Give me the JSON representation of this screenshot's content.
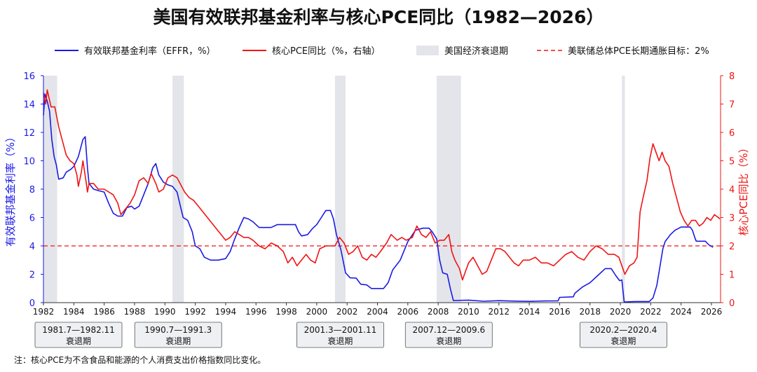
{
  "chart_data": {
    "type": "line",
    "title": "美国有效联邦基金利率与核心PCE同比（1982—2026）",
    "ylabel": "有效联邦基金利率（%）",
    "ylabel_right": "核心PCE同比（%）",
    "ylim": [
      0,
      16
    ],
    "ylim_right": [
      0,
      8
    ],
    "xlim": [
      1982,
      2026.6
    ],
    "x_ticks": [
      "1982",
      "1984",
      "1986",
      "1988",
      "1990",
      "1992",
      "1994",
      "1996",
      "1998",
      "2000",
      "2002",
      "2004",
      "2006",
      "2008",
      "2010",
      "2012",
      "2014",
      "2016",
      "2018",
      "2020",
      "2022",
      "2024",
      "2026"
    ],
    "y_ticks": [
      "0",
      "2",
      "4",
      "6",
      "8",
      "10",
      "12",
      "14",
      "16"
    ],
    "y_ticks_right": [
      "0",
      "1",
      "2",
      "3",
      "4",
      "5",
      "6",
      "7",
      "8"
    ],
    "legend": [
      {
        "label": "有效联邦基金利率（EFFR，%）",
        "color": "#1a1ae6"
      },
      {
        "label": "核心PCE同比（%，右轴）",
        "color": "#f01414"
      },
      {
        "label": "美国经济衰退期",
        "color": "#e3e5ea"
      },
      {
        "label": "美联储总体PCE长期通胀目标：2%",
        "color": "#f01414"
      }
    ],
    "target_value": 2,
    "recessions": [
      {
        "start": 1981.5,
        "end": 1982.9,
        "label1": "1981.7—1982.11",
        "label2": "衰退期"
      },
      {
        "start": 1990.5,
        "end": 1991.25,
        "label1": "1990.7—1991.3",
        "label2": "衰退期"
      },
      {
        "start": 2001.2,
        "end": 2001.9,
        "label1": "2001.3—2001.11",
        "label2": "衰退期"
      },
      {
        "start": 2007.9,
        "end": 2009.5,
        "label1": "2007.12—2009.6",
        "label2": "衰退期"
      },
      {
        "start": 2020.1,
        "end": 2020.3,
        "label1": "2020.2—2020.4",
        "label2": "衰退期"
      }
    ],
    "series": [
      {
        "name": "有效联邦基金利率（EFFR，%）",
        "axis": "left",
        "color": "#1a1ae6",
        "points": [
          [
            1982.0,
            13.2
          ],
          [
            1982.1,
            14.7
          ],
          [
            1982.25,
            14.2
          ],
          [
            1982.4,
            13.5
          ],
          [
            1982.55,
            11.5
          ],
          [
            1982.7,
            10.3
          ],
          [
            1982.85,
            9.7
          ],
          [
            1983.0,
            8.7
          ],
          [
            1983.3,
            8.8
          ],
          [
            1983.5,
            9.2
          ],
          [
            1983.8,
            9.4
          ],
          [
            1984.0,
            9.6
          ],
          [
            1984.3,
            10.3
          ],
          [
            1984.6,
            11.5
          ],
          [
            1984.75,
            11.7
          ],
          [
            1984.9,
            9.5
          ],
          [
            1985.0,
            8.4
          ],
          [
            1985.3,
            8.0
          ],
          [
            1985.6,
            7.9
          ],
          [
            1986.0,
            7.8
          ],
          [
            1986.3,
            7.0
          ],
          [
            1986.6,
            6.3
          ],
          [
            1986.9,
            6.1
          ],
          [
            1987.2,
            6.1
          ],
          [
            1987.5,
            6.7
          ],
          [
            1987.8,
            6.8
          ],
          [
            1988.0,
            6.6
          ],
          [
            1988.3,
            6.8
          ],
          [
            1988.6,
            7.6
          ],
          [
            1988.9,
            8.4
          ],
          [
            1989.2,
            9.5
          ],
          [
            1989.4,
            9.8
          ],
          [
            1989.6,
            9.0
          ],
          [
            1989.9,
            8.5
          ],
          [
            1990.2,
            8.3
          ],
          [
            1990.5,
            8.2
          ],
          [
            1990.8,
            7.8
          ],
          [
            1991.0,
            6.9
          ],
          [
            1991.2,
            6.0
          ],
          [
            1991.5,
            5.8
          ],
          [
            1991.8,
            5.0
          ],
          [
            1992.0,
            4.0
          ],
          [
            1992.3,
            3.8
          ],
          [
            1992.6,
            3.2
          ],
          [
            1993.0,
            3.0
          ],
          [
            1993.5,
            3.0
          ],
          [
            1994.0,
            3.1
          ],
          [
            1994.3,
            3.6
          ],
          [
            1994.6,
            4.5
          ],
          [
            1994.9,
            5.3
          ],
          [
            1995.2,
            6.0
          ],
          [
            1995.5,
            5.9
          ],
          [
            1995.8,
            5.7
          ],
          [
            1996.2,
            5.3
          ],
          [
            1996.6,
            5.3
          ],
          [
            1997.0,
            5.3
          ],
          [
            1997.4,
            5.5
          ],
          [
            1997.8,
            5.5
          ],
          [
            1998.2,
            5.5
          ],
          [
            1998.6,
            5.5
          ],
          [
            1998.8,
            5.0
          ],
          [
            1999.0,
            4.7
          ],
          [
            1999.4,
            4.8
          ],
          [
            1999.7,
            5.2
          ],
          [
            2000.0,
            5.5
          ],
          [
            2000.3,
            6.0
          ],
          [
            2000.6,
            6.5
          ],
          [
            2000.9,
            6.5
          ],
          [
            2001.1,
            5.9
          ],
          [
            2001.3,
            4.8
          ],
          [
            2001.6,
            3.7
          ],
          [
            2001.9,
            2.1
          ],
          [
            2002.2,
            1.75
          ],
          [
            2002.6,
            1.73
          ],
          [
            2002.9,
            1.3
          ],
          [
            2003.3,
            1.25
          ],
          [
            2003.6,
            1.0
          ],
          [
            2004.0,
            1.0
          ],
          [
            2004.4,
            1.0
          ],
          [
            2004.7,
            1.4
          ],
          [
            2005.0,
            2.3
          ],
          [
            2005.5,
            3.0
          ],
          [
            2006.0,
            4.3
          ],
          [
            2006.5,
            5.1
          ],
          [
            2007.0,
            5.25
          ],
          [
            2007.4,
            5.25
          ],
          [
            2007.6,
            5.0
          ],
          [
            2007.9,
            4.5
          ],
          [
            2008.1,
            3.0
          ],
          [
            2008.3,
            2.1
          ],
          [
            2008.6,
            2.0
          ],
          [
            2008.8,
            1.0
          ],
          [
            2009.0,
            0.15
          ],
          [
            2010.0,
            0.18
          ],
          [
            2011.0,
            0.1
          ],
          [
            2012.0,
            0.14
          ],
          [
            2013.0,
            0.11
          ],
          [
            2014.0,
            0.09
          ],
          [
            2015.0,
            0.12
          ],
          [
            2015.9,
            0.13
          ],
          [
            2016.0,
            0.37
          ],
          [
            2016.9,
            0.41
          ],
          [
            2017.0,
            0.66
          ],
          [
            2017.5,
            1.1
          ],
          [
            2018.0,
            1.4
          ],
          [
            2018.5,
            1.9
          ],
          [
            2019.0,
            2.4
          ],
          [
            2019.4,
            2.4
          ],
          [
            2019.7,
            1.9
          ],
          [
            2019.95,
            1.55
          ],
          [
            2020.1,
            1.6
          ],
          [
            2020.25,
            0.05
          ],
          [
            2021.0,
            0.08
          ],
          [
            2021.9,
            0.08
          ],
          [
            2022.15,
            0.33
          ],
          [
            2022.4,
            1.2
          ],
          [
            2022.6,
            2.5
          ],
          [
            2022.8,
            3.8
          ],
          [
            2022.95,
            4.3
          ],
          [
            2023.3,
            4.8
          ],
          [
            2023.6,
            5.1
          ],
          [
            2024.0,
            5.33
          ],
          [
            2024.6,
            5.33
          ],
          [
            2024.75,
            5.1
          ],
          [
            2024.9,
            4.6
          ],
          [
            2025.0,
            4.33
          ],
          [
            2025.6,
            4.33
          ],
          [
            2025.8,
            4.1
          ],
          [
            2026.1,
            3.9
          ]
        ]
      },
      {
        "name": "核心PCE同比（%，右轴）",
        "axis": "right",
        "color": "#f01414",
        "points": [
          [
            1982.0,
            7.4
          ],
          [
            1982.15,
            7.0
          ],
          [
            1982.25,
            7.5
          ],
          [
            1982.5,
            6.9
          ],
          [
            1982.75,
            6.9
          ],
          [
            1983.0,
            6.2
          ],
          [
            1983.2,
            5.8
          ],
          [
            1983.5,
            5.2
          ],
          [
            1983.75,
            5.0
          ],
          [
            1984.0,
            4.9
          ],
          [
            1984.2,
            4.5
          ],
          [
            1984.3,
            4.1
          ],
          [
            1984.5,
            4.6
          ],
          [
            1984.6,
            5.0
          ],
          [
            1984.8,
            4.3
          ],
          [
            1984.9,
            3.9
          ],
          [
            1985.0,
            4.2
          ],
          [
            1985.3,
            4.2
          ],
          [
            1985.6,
            4.0
          ],
          [
            1986.0,
            4.0
          ],
          [
            1986.3,
            3.9
          ],
          [
            1986.6,
            3.8
          ],
          [
            1986.9,
            3.5
          ],
          [
            1987.1,
            3.1
          ],
          [
            1987.4,
            3.3
          ],
          [
            1987.7,
            3.5
          ],
          [
            1988.0,
            3.8
          ],
          [
            1988.3,
            4.3
          ],
          [
            1988.6,
            4.4
          ],
          [
            1988.9,
            4.2
          ],
          [
            1989.1,
            4.55
          ],
          [
            1989.4,
            4.2
          ],
          [
            1989.6,
            3.9
          ],
          [
            1989.9,
            4.0
          ],
          [
            1990.2,
            4.4
          ],
          [
            1990.5,
            4.5
          ],
          [
            1990.8,
            4.4
          ],
          [
            1991.0,
            4.2
          ],
          [
            1991.3,
            3.9
          ],
          [
            1991.6,
            3.7
          ],
          [
            1991.9,
            3.6
          ],
          [
            1992.2,
            3.4
          ],
          [
            1992.5,
            3.2
          ],
          [
            1992.8,
            3.0
          ],
          [
            1993.1,
            2.8
          ],
          [
            1993.4,
            2.6
          ],
          [
            1993.7,
            2.4
          ],
          [
            1994.0,
            2.2
          ],
          [
            1994.3,
            2.3
          ],
          [
            1994.6,
            2.5
          ],
          [
            1994.9,
            2.4
          ],
          [
            1995.2,
            2.3
          ],
          [
            1995.5,
            2.3
          ],
          [
            1995.8,
            2.2
          ],
          [
            1996.2,
            2.0
          ],
          [
            1996.6,
            1.9
          ],
          [
            1997.0,
            2.1
          ],
          [
            1997.4,
            2.0
          ],
          [
            1997.8,
            1.8
          ],
          [
            1998.1,
            1.4
          ],
          [
            1998.4,
            1.6
          ],
          [
            1998.7,
            1.3
          ],
          [
            1999.0,
            1.5
          ],
          [
            1999.3,
            1.7
          ],
          [
            1999.6,
            1.5
          ],
          [
            1999.9,
            1.4
          ],
          [
            2000.2,
            1.9
          ],
          [
            2000.6,
            2.0
          ],
          [
            2000.9,
            2.0
          ],
          [
            2001.2,
            2.0
          ],
          [
            2001.5,
            2.3
          ],
          [
            2001.8,
            2.1
          ],
          [
            2002.1,
            1.7
          ],
          [
            2002.4,
            1.8
          ],
          [
            2002.7,
            2.0
          ],
          [
            2003.0,
            1.6
          ],
          [
            2003.3,
            1.5
          ],
          [
            2003.6,
            1.7
          ],
          [
            2003.9,
            1.6
          ],
          [
            2004.2,
            1.8
          ],
          [
            2004.6,
            2.1
          ],
          [
            2004.9,
            2.4
          ],
          [
            2005.3,
            2.2
          ],
          [
            2005.6,
            2.3
          ],
          [
            2005.9,
            2.2
          ],
          [
            2006.3,
            2.3
          ],
          [
            2006.6,
            2.7
          ],
          [
            2006.9,
            2.4
          ],
          [
            2007.2,
            2.3
          ],
          [
            2007.5,
            2.5
          ],
          [
            2007.8,
            2.1
          ],
          [
            2008.1,
            2.2
          ],
          [
            2008.4,
            2.2
          ],
          [
            2008.7,
            2.4
          ],
          [
            2008.9,
            1.8
          ],
          [
            2009.1,
            1.5
          ],
          [
            2009.4,
            1.2
          ],
          [
            2009.6,
            0.8
          ],
          [
            2009.8,
            1.1
          ],
          [
            2010.0,
            1.4
          ],
          [
            2010.3,
            1.6
          ],
          [
            2010.6,
            1.3
          ],
          [
            2010.9,
            1.0
          ],
          [
            2011.2,
            1.1
          ],
          [
            2011.5,
            1.5
          ],
          [
            2011.8,
            1.9
          ],
          [
            2012.1,
            1.9
          ],
          [
            2012.4,
            1.8
          ],
          [
            2012.7,
            1.6
          ],
          [
            2013.0,
            1.4
          ],
          [
            2013.3,
            1.3
          ],
          [
            2013.6,
            1.5
          ],
          [
            2014.0,
            1.5
          ],
          [
            2014.4,
            1.6
          ],
          [
            2014.8,
            1.4
          ],
          [
            2015.2,
            1.4
          ],
          [
            2015.6,
            1.3
          ],
          [
            2016.0,
            1.5
          ],
          [
            2016.4,
            1.7
          ],
          [
            2016.8,
            1.8
          ],
          [
            2017.2,
            1.6
          ],
          [
            2017.6,
            1.5
          ],
          [
            2018.0,
            1.8
          ],
          [
            2018.4,
            2.0
          ],
          [
            2018.8,
            1.9
          ],
          [
            2019.2,
            1.7
          ],
          [
            2019.6,
            1.7
          ],
          [
            2019.9,
            1.6
          ],
          [
            2020.1,
            1.3
          ],
          [
            2020.3,
            1.0
          ],
          [
            2020.6,
            1.3
          ],
          [
            2020.9,
            1.4
          ],
          [
            2021.1,
            1.6
          ],
          [
            2021.3,
            3.2
          ],
          [
            2021.5,
            3.7
          ],
          [
            2021.75,
            4.3
          ],
          [
            2021.95,
            5.1
          ],
          [
            2022.15,
            5.6
          ],
          [
            2022.35,
            5.3
          ],
          [
            2022.55,
            5.0
          ],
          [
            2022.75,
            5.3
          ],
          [
            2022.95,
            5.0
          ],
          [
            2023.2,
            4.8
          ],
          [
            2023.45,
            4.2
          ],
          [
            2023.7,
            3.7
          ],
          [
            2023.95,
            3.2
          ],
          [
            2024.2,
            2.9
          ],
          [
            2024.45,
            2.7
          ],
          [
            2024.7,
            2.9
          ],
          [
            2024.95,
            2.9
          ],
          [
            2025.2,
            2.7
          ],
          [
            2025.45,
            2.8
          ],
          [
            2025.7,
            3.0
          ],
          [
            2025.95,
            2.9
          ],
          [
            2026.2,
            3.1
          ],
          [
            2026.45,
            3.0
          ],
          [
            2026.55,
            2.95
          ]
        ]
      }
    ],
    "note": "注：核心PCE为不含食品和能源的个人消费支出价格指数同比变化。"
  }
}
